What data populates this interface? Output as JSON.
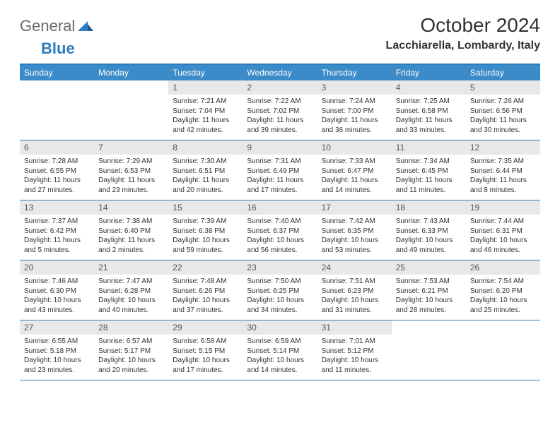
{
  "brand": {
    "part1": "General",
    "part2": "Blue"
  },
  "title": "October 2024",
  "location": "Lacchiarella, Lombardy, Italy",
  "colors": {
    "header_bg": "#3b8bc8",
    "border": "#2d7cc0",
    "daynum_bg": "#e8e8e8",
    "text": "#333333"
  },
  "typography": {
    "title_fontsize": 28,
    "location_fontsize": 16,
    "cell_fontsize": 10
  },
  "dayNames": [
    "Sunday",
    "Monday",
    "Tuesday",
    "Wednesday",
    "Thursday",
    "Friday",
    "Saturday"
  ],
  "weeks": [
    [
      {
        "empty": true
      },
      {
        "empty": true
      },
      {
        "num": "1",
        "sunrise": "7:21 AM",
        "sunset": "7:04 PM",
        "daylight": "11 hours and 42 minutes."
      },
      {
        "num": "2",
        "sunrise": "7:22 AM",
        "sunset": "7:02 PM",
        "daylight": "11 hours and 39 minutes."
      },
      {
        "num": "3",
        "sunrise": "7:24 AM",
        "sunset": "7:00 PM",
        "daylight": "11 hours and 36 minutes."
      },
      {
        "num": "4",
        "sunrise": "7:25 AM",
        "sunset": "6:58 PM",
        "daylight": "11 hours and 33 minutes."
      },
      {
        "num": "5",
        "sunrise": "7:26 AM",
        "sunset": "6:56 PM",
        "daylight": "11 hours and 30 minutes."
      }
    ],
    [
      {
        "num": "6",
        "sunrise": "7:28 AM",
        "sunset": "6:55 PM",
        "daylight": "11 hours and 27 minutes."
      },
      {
        "num": "7",
        "sunrise": "7:29 AM",
        "sunset": "6:53 PM",
        "daylight": "11 hours and 23 minutes."
      },
      {
        "num": "8",
        "sunrise": "7:30 AM",
        "sunset": "6:51 PM",
        "daylight": "11 hours and 20 minutes."
      },
      {
        "num": "9",
        "sunrise": "7:31 AM",
        "sunset": "6:49 PM",
        "daylight": "11 hours and 17 minutes."
      },
      {
        "num": "10",
        "sunrise": "7:33 AM",
        "sunset": "6:47 PM",
        "daylight": "11 hours and 14 minutes."
      },
      {
        "num": "11",
        "sunrise": "7:34 AM",
        "sunset": "6:45 PM",
        "daylight": "11 hours and 11 minutes."
      },
      {
        "num": "12",
        "sunrise": "7:35 AM",
        "sunset": "6:44 PM",
        "daylight": "11 hours and 8 minutes."
      }
    ],
    [
      {
        "num": "13",
        "sunrise": "7:37 AM",
        "sunset": "6:42 PM",
        "daylight": "11 hours and 5 minutes."
      },
      {
        "num": "14",
        "sunrise": "7:38 AM",
        "sunset": "6:40 PM",
        "daylight": "11 hours and 2 minutes."
      },
      {
        "num": "15",
        "sunrise": "7:39 AM",
        "sunset": "6:38 PM",
        "daylight": "10 hours and 59 minutes."
      },
      {
        "num": "16",
        "sunrise": "7:40 AM",
        "sunset": "6:37 PM",
        "daylight": "10 hours and 56 minutes."
      },
      {
        "num": "17",
        "sunrise": "7:42 AM",
        "sunset": "6:35 PM",
        "daylight": "10 hours and 53 minutes."
      },
      {
        "num": "18",
        "sunrise": "7:43 AM",
        "sunset": "6:33 PM",
        "daylight": "10 hours and 49 minutes."
      },
      {
        "num": "19",
        "sunrise": "7:44 AM",
        "sunset": "6:31 PM",
        "daylight": "10 hours and 46 minutes."
      }
    ],
    [
      {
        "num": "20",
        "sunrise": "7:46 AM",
        "sunset": "6:30 PM",
        "daylight": "10 hours and 43 minutes."
      },
      {
        "num": "21",
        "sunrise": "7:47 AM",
        "sunset": "6:28 PM",
        "daylight": "10 hours and 40 minutes."
      },
      {
        "num": "22",
        "sunrise": "7:48 AM",
        "sunset": "6:26 PM",
        "daylight": "10 hours and 37 minutes."
      },
      {
        "num": "23",
        "sunrise": "7:50 AM",
        "sunset": "6:25 PM",
        "daylight": "10 hours and 34 minutes."
      },
      {
        "num": "24",
        "sunrise": "7:51 AM",
        "sunset": "6:23 PM",
        "daylight": "10 hours and 31 minutes."
      },
      {
        "num": "25",
        "sunrise": "7:53 AM",
        "sunset": "6:21 PM",
        "daylight": "10 hours and 28 minutes."
      },
      {
        "num": "26",
        "sunrise": "7:54 AM",
        "sunset": "6:20 PM",
        "daylight": "10 hours and 25 minutes."
      }
    ],
    [
      {
        "num": "27",
        "sunrise": "6:55 AM",
        "sunset": "5:18 PM",
        "daylight": "10 hours and 23 minutes."
      },
      {
        "num": "28",
        "sunrise": "6:57 AM",
        "sunset": "5:17 PM",
        "daylight": "10 hours and 20 minutes."
      },
      {
        "num": "29",
        "sunrise": "6:58 AM",
        "sunset": "5:15 PM",
        "daylight": "10 hours and 17 minutes."
      },
      {
        "num": "30",
        "sunrise": "6:59 AM",
        "sunset": "5:14 PM",
        "daylight": "10 hours and 14 minutes."
      },
      {
        "num": "31",
        "sunrise": "7:01 AM",
        "sunset": "5:12 PM",
        "daylight": "10 hours and 11 minutes."
      },
      {
        "empty": true
      },
      {
        "empty": true
      }
    ]
  ]
}
